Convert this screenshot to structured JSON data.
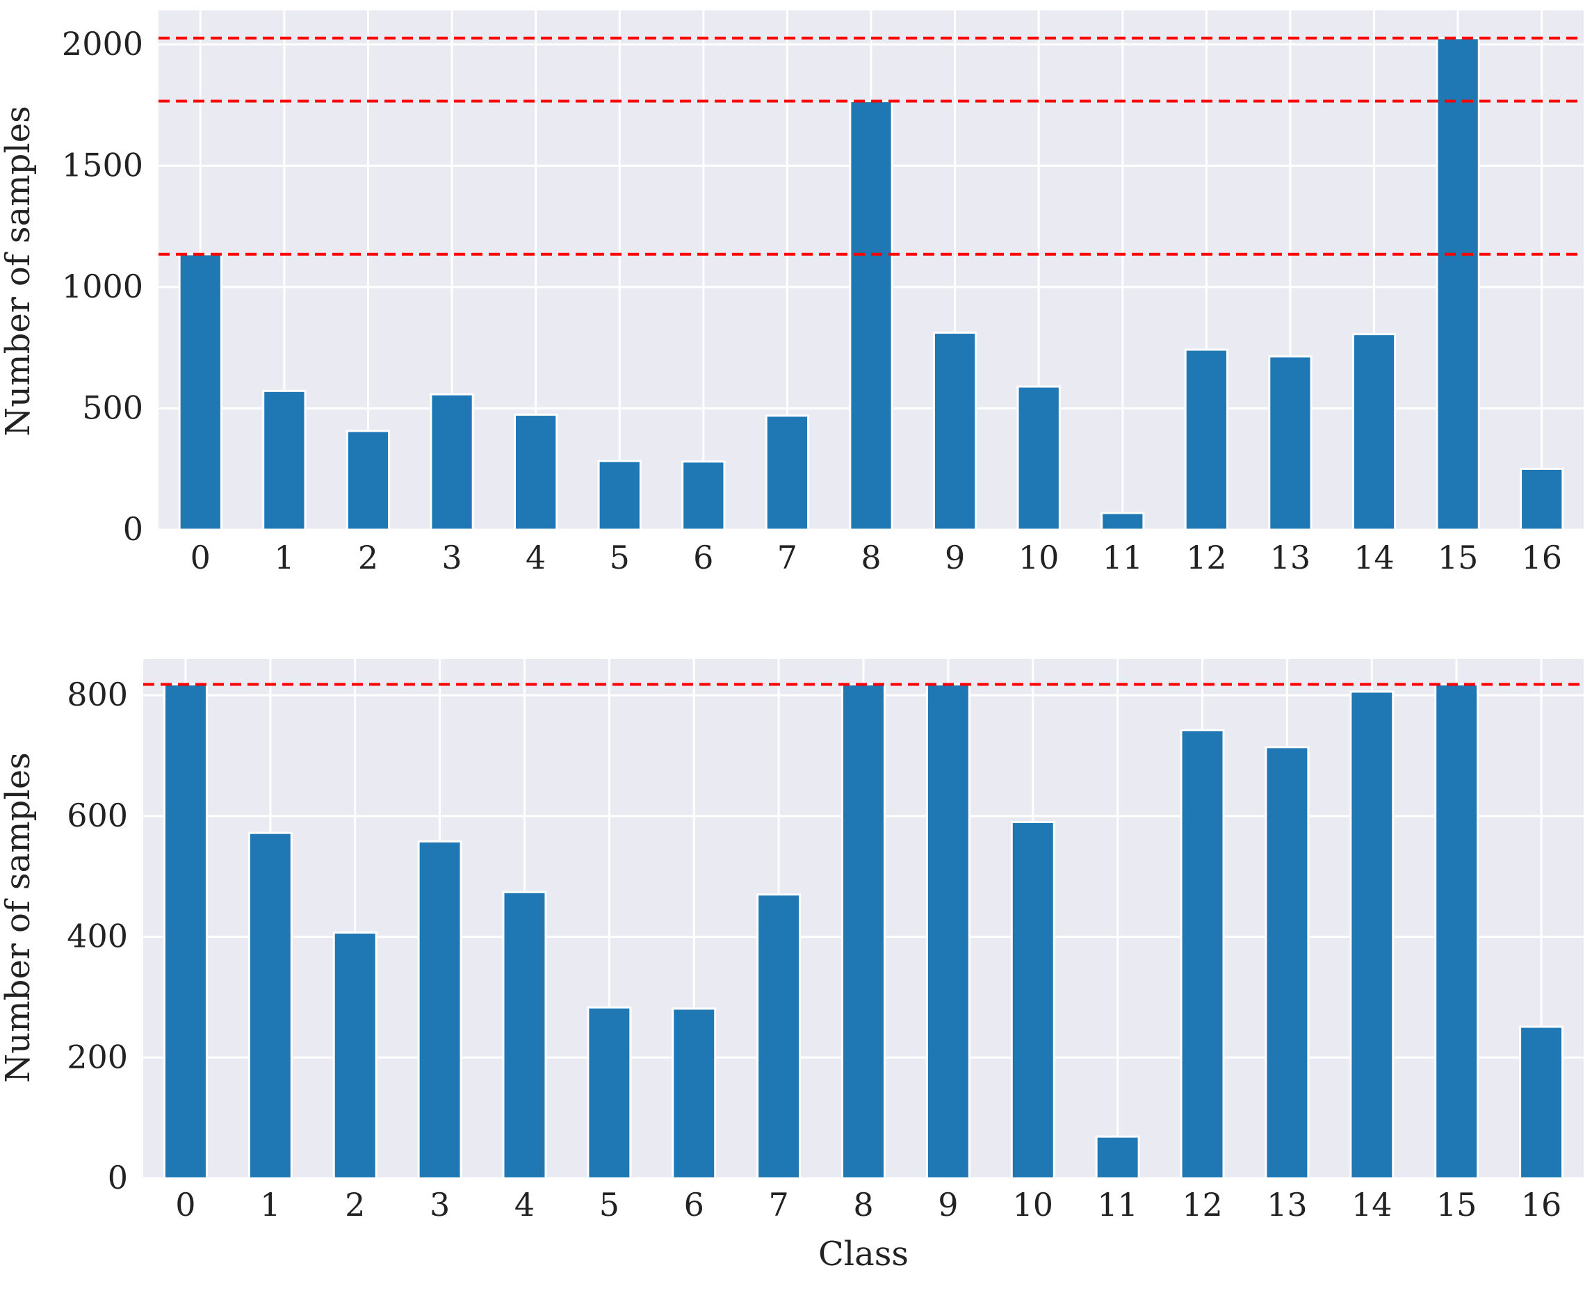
{
  "chart_data": [
    {
      "type": "bar",
      "title": "",
      "xlabel": "",
      "ylabel": "Number of samples",
      "categories": [
        "0",
        "1",
        "2",
        "3",
        "4",
        "5",
        "6",
        "7",
        "8",
        "9",
        "10",
        "11",
        "12",
        "13",
        "14",
        "15",
        "16"
      ],
      "values": [
        1135,
        572,
        407,
        558,
        474,
        283,
        281,
        470,
        1766,
        812,
        590,
        69,
        742,
        714,
        806,
        2026,
        251
      ],
      "ylim": [
        0,
        2140
      ],
      "yticks": [
        0,
        500,
        1000,
        1500,
        2000
      ],
      "grid": true,
      "bar_color": "#1f77b4",
      "background_color": "#eaeaf2",
      "reference_lines": [
        {
          "y": 2026,
          "color": "#ff0000",
          "style": "dashed"
        },
        {
          "y": 1766,
          "color": "#ff0000",
          "style": "dashed"
        },
        {
          "y": 1135,
          "color": "#ff0000",
          "style": "dashed"
        }
      ]
    },
    {
      "type": "bar",
      "title": "",
      "xlabel": "Class",
      "ylabel": "Number of samples",
      "categories": [
        "0",
        "1",
        "2",
        "3",
        "4",
        "5",
        "6",
        "7",
        "8",
        "9",
        "10",
        "11",
        "12",
        "13",
        "14",
        "15",
        "16"
      ],
      "values": [
        818,
        572,
        407,
        558,
        474,
        283,
        281,
        470,
        818,
        818,
        590,
        69,
        742,
        714,
        806,
        818,
        251
      ],
      "ylim": [
        0,
        860
      ],
      "yticks": [
        0,
        200,
        400,
        600,
        800
      ],
      "grid": true,
      "bar_color": "#1f77b4",
      "background_color": "#eaeaf2",
      "reference_lines": [
        {
          "y": 818,
          "color": "#ff0000",
          "style": "dashed"
        }
      ]
    }
  ]
}
